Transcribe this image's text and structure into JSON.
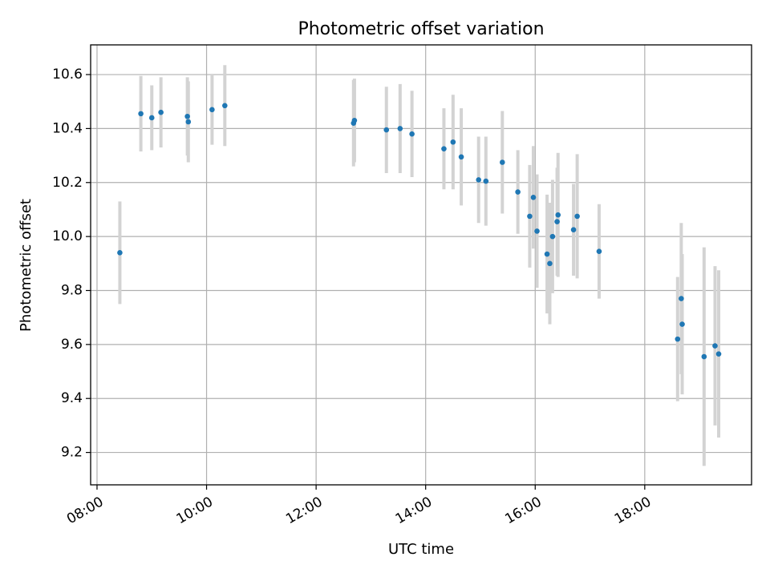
{
  "chart_data": {
    "type": "scatter",
    "title": "Photometric offset variation",
    "xlabel": "UTC time",
    "ylabel": "Photometric offset",
    "grid": true,
    "colors": {
      "point": "#1f77b4",
      "errorbar": "#d3d3d3",
      "grid": "#b0b0b0"
    },
    "xlim": [
      "07:53",
      "19:57"
    ],
    "ylim": [
      9.08,
      10.71
    ],
    "x_ticks": [
      "08:00",
      "10:00",
      "12:00",
      "14:00",
      "16:00",
      "18:00"
    ],
    "y_ticks": [
      "9.2",
      "9.4",
      "9.6",
      "9.8",
      "10.0",
      "10.2",
      "10.4",
      "10.6"
    ],
    "series": [
      {
        "points": [
          {
            "x": "08:25",
            "y": 9.94,
            "err": 0.19
          },
          {
            "x": "08:48",
            "y": 10.455,
            "err": 0.14
          },
          {
            "x": "09:00",
            "y": 10.44,
            "err": 0.12
          },
          {
            "x": "09:10",
            "y": 10.46,
            "err": 0.13
          },
          {
            "x": "09:39",
            "y": 10.445,
            "err": 0.145
          },
          {
            "x": "09:40",
            "y": 10.425,
            "err": 0.15
          },
          {
            "x": "10:06",
            "y": 10.47,
            "err": 0.13
          },
          {
            "x": "10:20",
            "y": 10.485,
            "err": 0.15
          },
          {
            "x": "12:41",
            "y": 10.42,
            "err": 0.16
          },
          {
            "x": "12:42",
            "y": 10.43,
            "err": 0.155
          },
          {
            "x": "13:17",
            "y": 10.395,
            "err": 0.16
          },
          {
            "x": "13:32",
            "y": 10.4,
            "err": 0.165
          },
          {
            "x": "13:45",
            "y": 10.38,
            "err": 0.16
          },
          {
            "x": "14:20",
            "y": 10.325,
            "err": 0.15
          },
          {
            "x": "14:30",
            "y": 10.35,
            "err": 0.175
          },
          {
            "x": "14:39",
            "y": 10.295,
            "err": 0.18
          },
          {
            "x": "14:58",
            "y": 10.21,
            "err": 0.16
          },
          {
            "x": "15:06",
            "y": 10.205,
            "err": 0.165
          },
          {
            "x": "15:24",
            "y": 10.275,
            "err": 0.19
          },
          {
            "x": "15:41",
            "y": 10.165,
            "err": 0.155
          },
          {
            "x": "15:54",
            "y": 10.075,
            "err": 0.19
          },
          {
            "x": "15:58",
            "y": 10.145,
            "err": 0.19
          },
          {
            "x": "16:02",
            "y": 10.02,
            "err": 0.21
          },
          {
            "x": "16:13",
            "y": 9.935,
            "err": 0.22
          },
          {
            "x": "16:16",
            "y": 9.9,
            "err": 0.225
          },
          {
            "x": "16:19",
            "y": 10.0,
            "err": 0.21
          },
          {
            "x": "16:24",
            "y": 10.055,
            "err": 0.2
          },
          {
            "x": "16:25",
            "y": 10.08,
            "err": 0.23
          },
          {
            "x": "16:42",
            "y": 10.025,
            "err": 0.17
          },
          {
            "x": "16:46",
            "y": 10.075,
            "err": 0.23
          },
          {
            "x": "17:10",
            "y": 9.945,
            "err": 0.175
          },
          {
            "x": "18:36",
            "y": 9.62,
            "err": 0.23
          },
          {
            "x": "18:40",
            "y": 9.77,
            "err": 0.28
          },
          {
            "x": "18:41",
            "y": 9.675,
            "err": 0.26
          },
          {
            "x": "19:05",
            "y": 9.555,
            "err": 0.405
          },
          {
            "x": "19:17",
            "y": 9.595,
            "err": 0.295
          },
          {
            "x": "19:21",
            "y": 9.565,
            "err": 0.31
          }
        ]
      }
    ]
  }
}
